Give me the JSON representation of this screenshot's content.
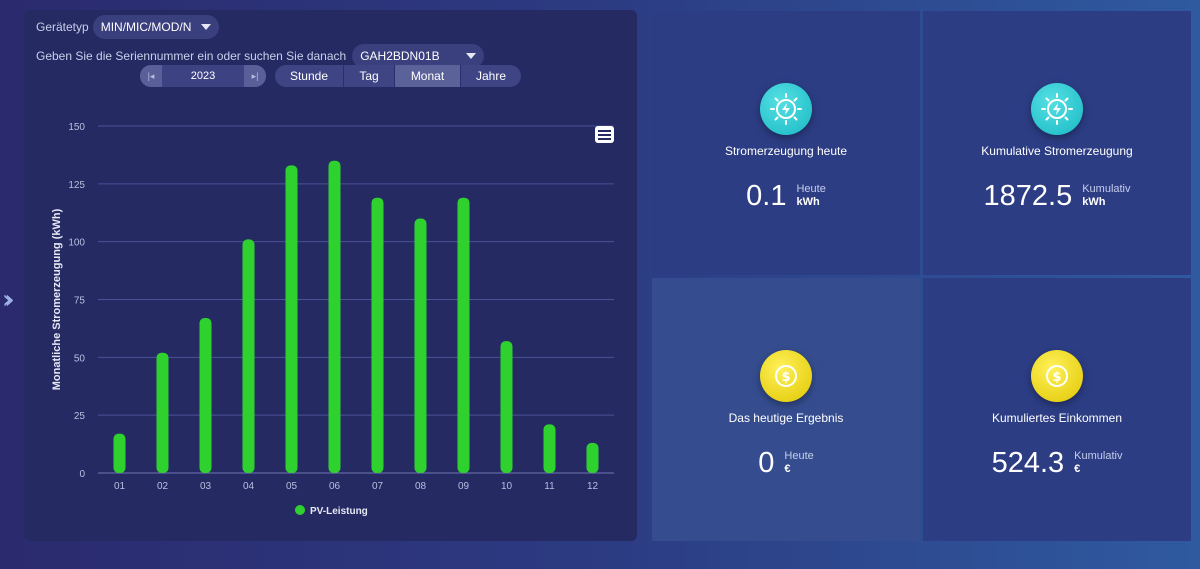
{
  "controls": {
    "device_type_label": "Gerätetyp",
    "device_type_value": "MIN/MIC/MOD/N",
    "serial_label": "Geben Sie die Seriennummer ein oder suchen Sie danach",
    "serial_value": "GAH2BDN01B",
    "year": "2023",
    "periods": [
      "Stunde",
      "Tag",
      "Monat",
      "Jahre"
    ],
    "active_period": "Monat"
  },
  "chart_data": {
    "type": "bar",
    "categories": [
      "01",
      "02",
      "03",
      "04",
      "05",
      "06",
      "07",
      "08",
      "09",
      "10",
      "11",
      "12"
    ],
    "series": [
      {
        "name": "PV-Leistung",
        "values": [
          17,
          52,
          67,
          101,
          133,
          135,
          119,
          110,
          119,
          57,
          21,
          13
        ],
        "color": "#2fd12f"
      }
    ],
    "ylabel": "Monatliche Stromerzeugung (kWh)",
    "ylim": [
      0,
      150
    ],
    "yticks": [
      0,
      25,
      50,
      75,
      100,
      125,
      150
    ],
    "grid": true,
    "legend": "bottom"
  },
  "tiles": [
    {
      "title": "Stromerzeugung heute",
      "value": "0.1",
      "unit_label": "Heute",
      "unit": "kWh",
      "icon": "lightning-icon"
    },
    {
      "title": "Kumulative Stromerzeugung",
      "value": "1872.5",
      "unit_label": "Kumulativ",
      "unit": "kWh",
      "icon": "lightning-icon"
    },
    {
      "title": "Das heutige Ergebnis",
      "value": "0",
      "unit_label": "Heute",
      "unit": "€",
      "icon": "dollar-coin-icon"
    },
    {
      "title": "Kumuliertes Einkommen",
      "value": "524.3",
      "unit_label": "Kumulativ",
      "unit": "€",
      "icon": "dollar-coin-icon"
    }
  ]
}
